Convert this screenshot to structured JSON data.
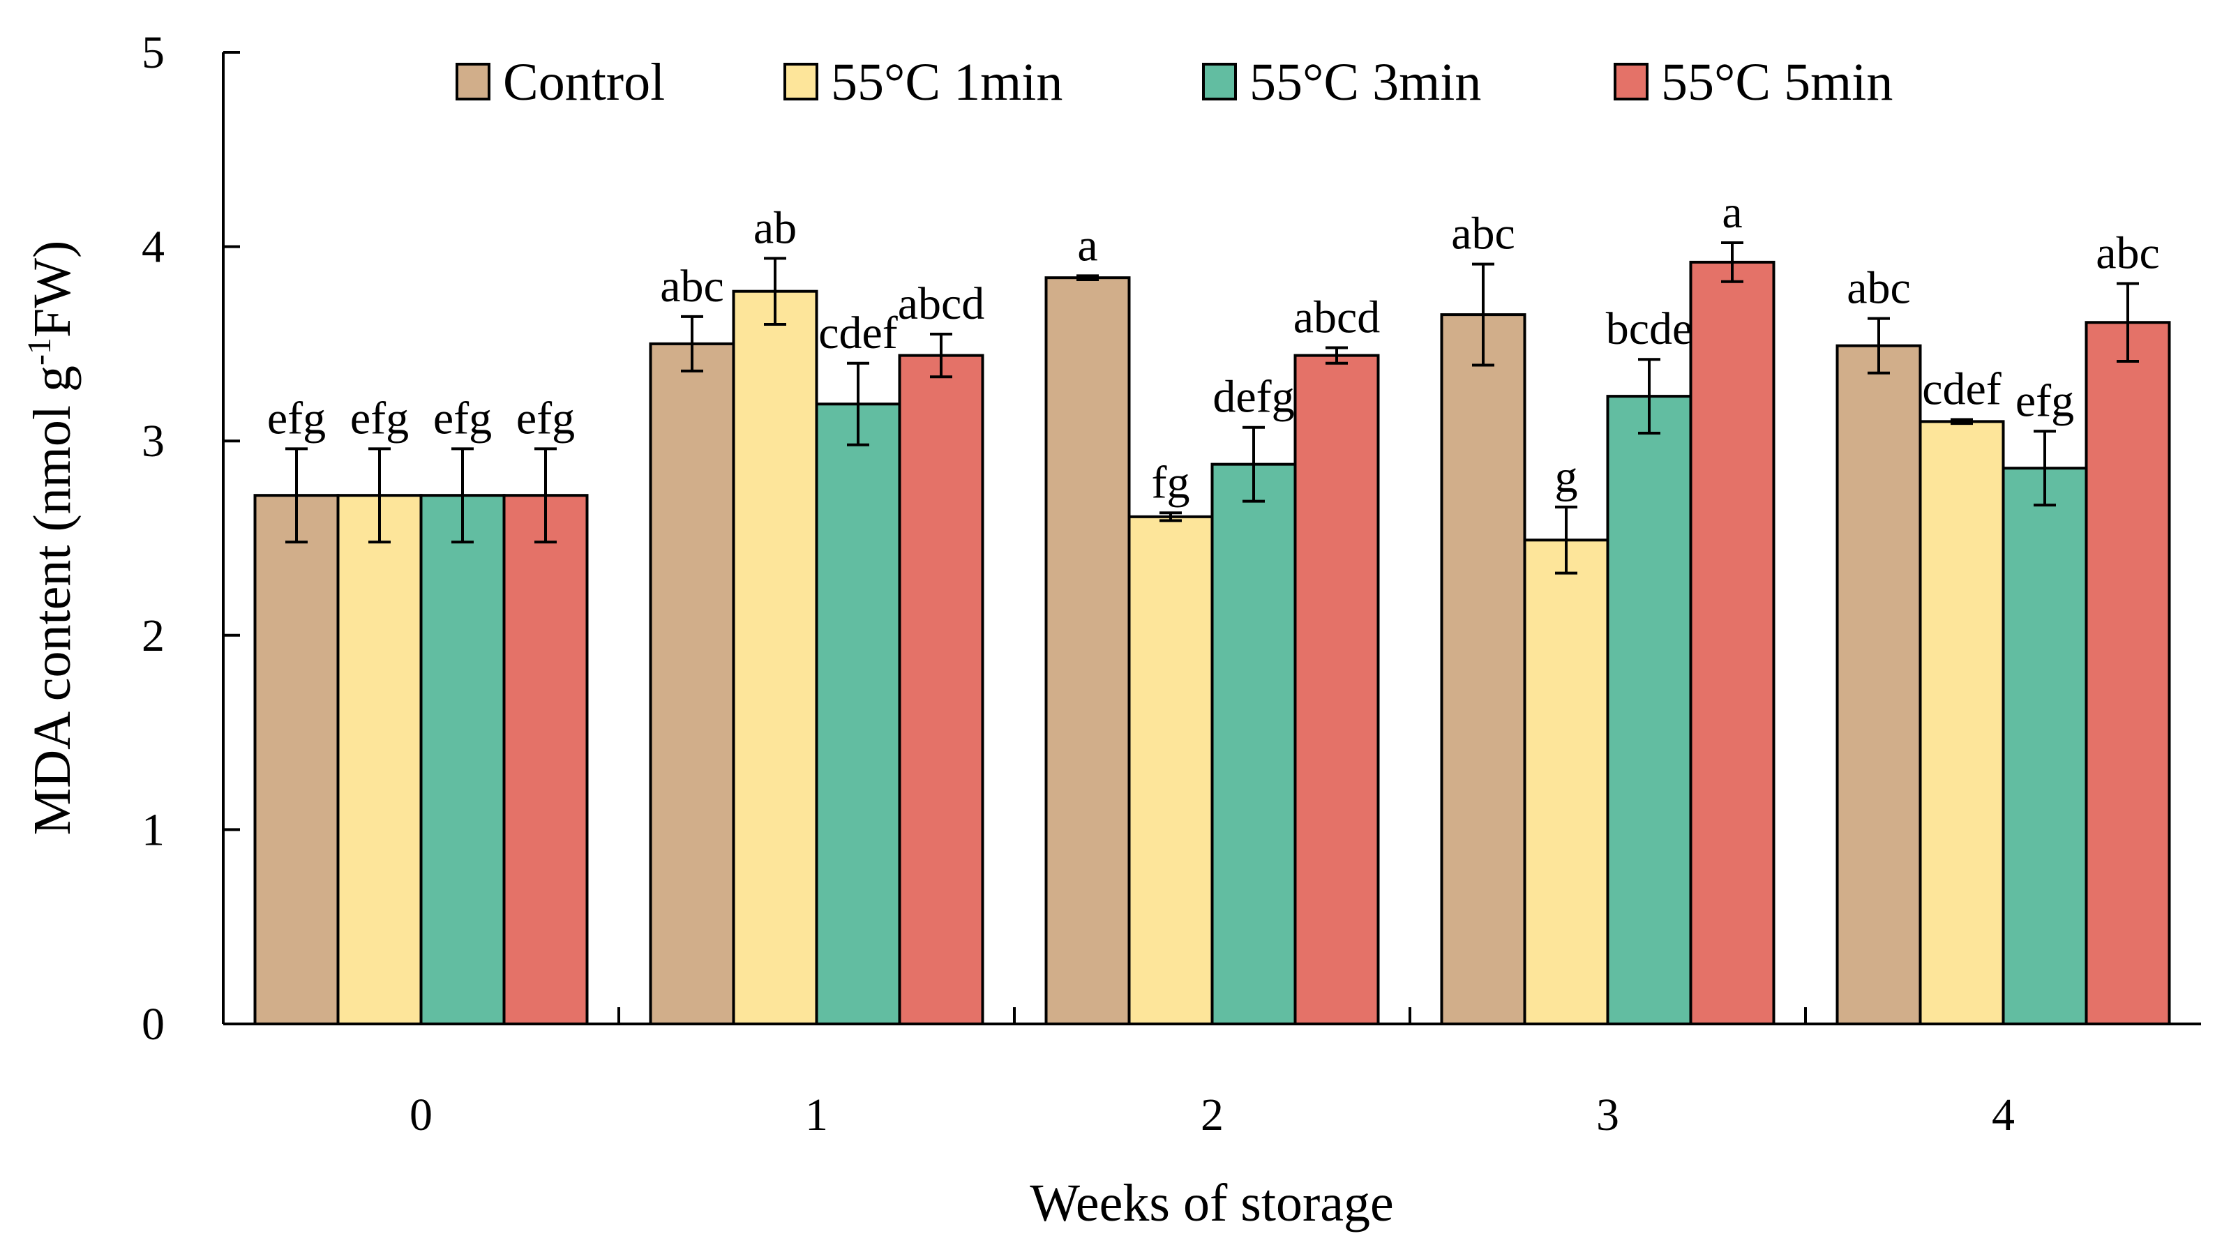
{
  "chart_data": {
    "type": "bar",
    "xlabel": "Weeks of storage",
    "ylabel": {
      "prefix": "MDA content (nmol g",
      "superscript": "-1",
      "suffix": "FW)"
    },
    "categories": [
      "0",
      "1",
      "2",
      "3",
      "4"
    ],
    "ylim": [
      0,
      5
    ],
    "yticks": [
      "0",
      "1",
      "2",
      "3",
      "4",
      "5"
    ],
    "legend_position": "top",
    "series": [
      {
        "name": "Control",
        "color": "#D1AE8A",
        "values": [
          2.72,
          3.5,
          3.84,
          3.65,
          3.49
        ],
        "errors": [
          0.24,
          0.14,
          0.01,
          0.26,
          0.14
        ],
        "labels": [
          "efg",
          "abc",
          "a",
          "abc",
          "abc"
        ]
      },
      {
        "name": "55°C 1min",
        "color": "#FDE59A",
        "values": [
          2.72,
          3.77,
          2.61,
          2.49,
          3.1
        ],
        "errors": [
          0.24,
          0.17,
          0.02,
          0.17,
          0.01
        ],
        "labels": [
          "efg",
          "ab",
          "fg",
          "g",
          "cdef"
        ]
      },
      {
        "name": "55°C 3min",
        "color": "#62BDA1",
        "values": [
          2.72,
          3.19,
          2.88,
          3.23,
          2.86
        ],
        "errors": [
          0.24,
          0.21,
          0.19,
          0.19,
          0.19
        ],
        "labels": [
          "efg",
          "cdef",
          "defg",
          "bcde",
          "efg"
        ]
      },
      {
        "name": "55°C 5min",
        "color": "#E47268",
        "values": [
          2.72,
          3.44,
          3.44,
          3.92,
          3.61
        ],
        "errors": [
          0.24,
          0.11,
          0.04,
          0.1,
          0.2
        ],
        "labels": [
          "efg",
          "abcd",
          "abcd",
          "a",
          "abc"
        ]
      }
    ]
  }
}
